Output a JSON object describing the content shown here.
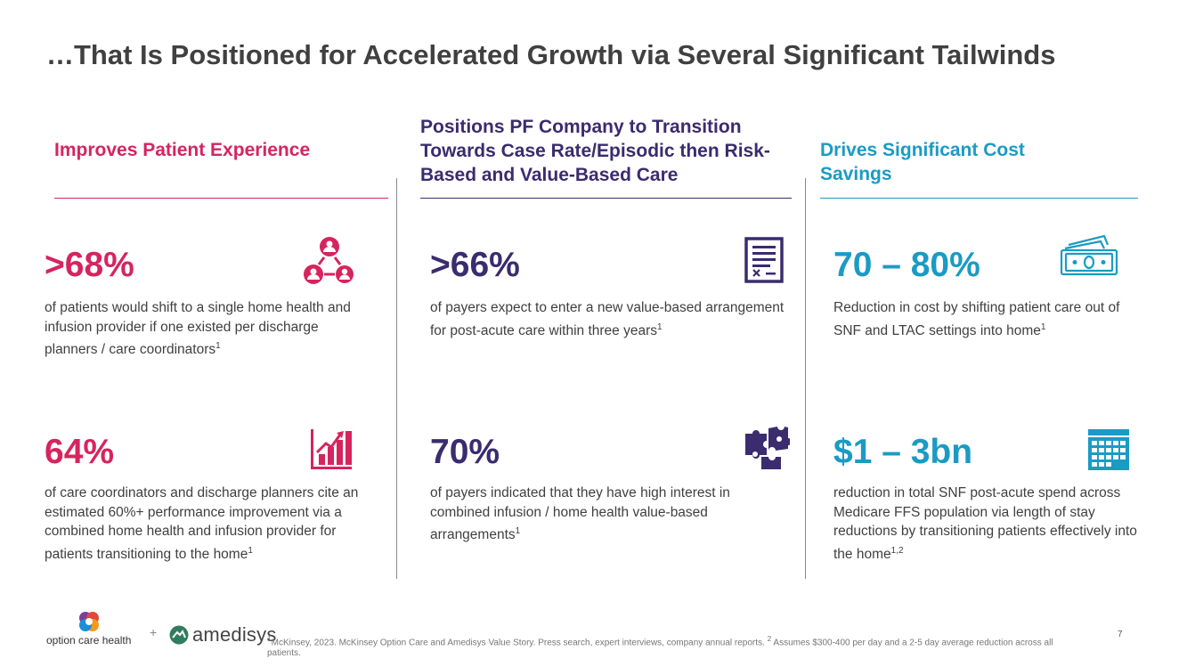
{
  "title": "…That Is Positioned for Accelerated Growth via Several Significant Tailwinds",
  "columns": [
    {
      "heading": "Improves Patient Experience",
      "color": "#d6245f",
      "stats": [
        {
          "value": ">68%",
          "text": "of patients would shift to a single home health and infusion provider if one existed per discharge planners / care coordinators",
          "sup": "1",
          "icon": "people-network-icon"
        },
        {
          "value": "64%",
          "text": "of care coordinators and discharge planners cite an estimated 60%+ performance improvement via a combined home health and infusion provider for patients transitioning to the home",
          "sup": "1",
          "icon": "bar-chart-growth-icon"
        }
      ]
    },
    {
      "heading": "Positions PF Company to Transition Towards Case Rate/Episodic then Risk-Based and Value-Based Care",
      "color": "#3a2c6e",
      "stats": [
        {
          "value": ">66%",
          "text": "of payers expect to enter a new value-based arrangement for post-acute care within three years",
          "sup": "1",
          "icon": "document-checklist-icon"
        },
        {
          "value": "70%",
          "text": "of payers indicated that they have high interest in combined infusion / home health value-based arrangements",
          "sup": "1",
          "icon": "puzzle-icon"
        }
      ]
    },
    {
      "heading": "Drives Significant Cost Savings",
      "color": "#1a9bc4",
      "stats": [
        {
          "value": "70 – 80%",
          "text": "Reduction in cost by shifting patient care out of SNF and LTAC settings into home",
          "sup": "1",
          "icon": "money-bills-icon"
        },
        {
          "value": "$1 – 3bn",
          "text": "reduction in total SNF post-acute spend across Medicare FFS population via length of stay reductions by transitioning patients effectively into the home",
          "sup": "1,2",
          "icon": "calendar-icon"
        }
      ]
    }
  ],
  "footer": {
    "logo_left": "option care health",
    "plus": "+",
    "logo_right": "amedisys",
    "footnote_sup1": "1",
    "footnote_a": "McKinsey, 2023.  McKinsey Option Care and Amedisys Value Story.  Press search, expert interviews, company annual reports. ",
    "footnote_sup2": "2",
    "footnote_b": " Assumes $300-400 per day and a 2-5 day average reduction across all patients.",
    "page_number": "7"
  }
}
